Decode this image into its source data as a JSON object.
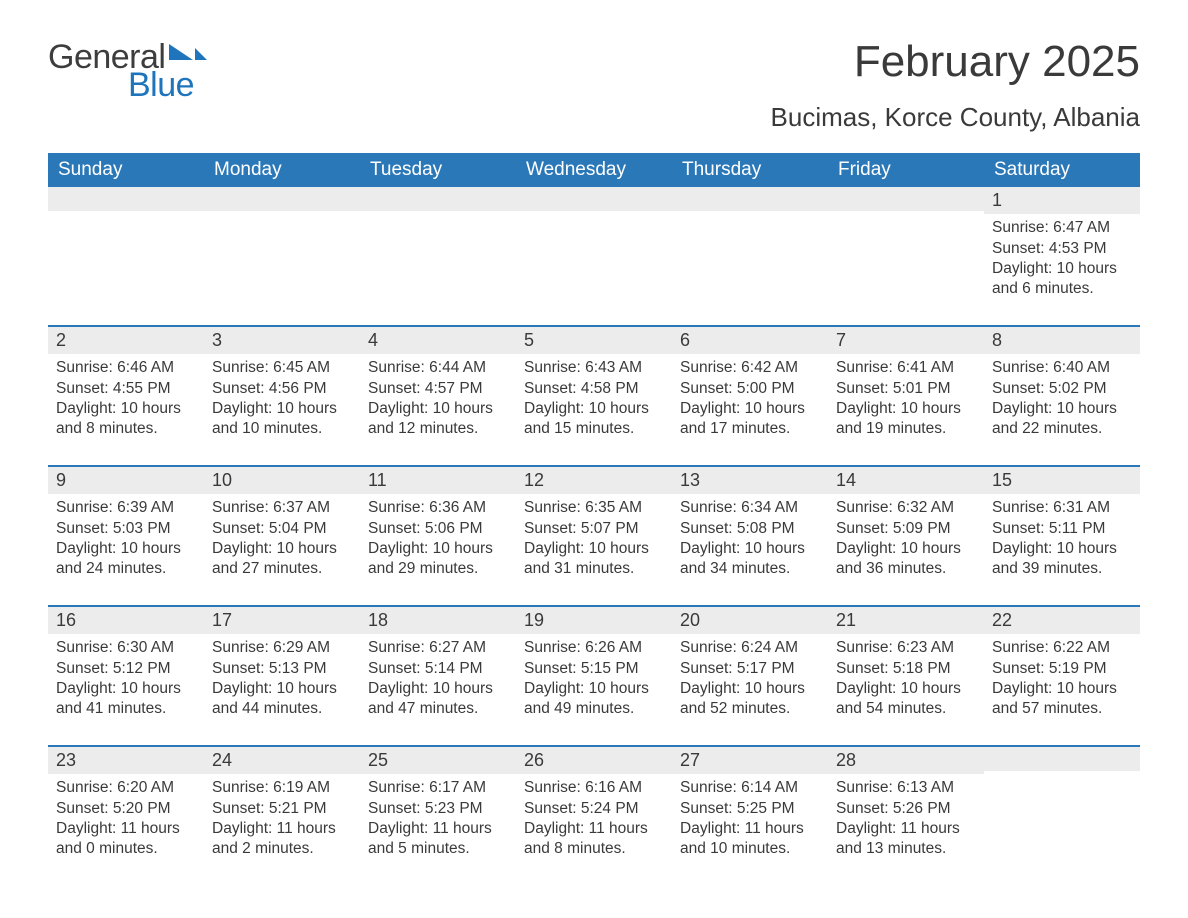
{
  "logo": {
    "text1": "General",
    "text2": "Blue",
    "flag_color": "#1f75bb"
  },
  "title": "February 2025",
  "location": "Bucimas, Korce County, Albania",
  "colors": {
    "header_bg": "#2b78b8",
    "header_text": "#ffffff",
    "daynum_bg": "#ececec",
    "row_divider": "#2b78b8",
    "body_text": "#3a3a3a"
  },
  "days_of_week": [
    "Sunday",
    "Monday",
    "Tuesday",
    "Wednesday",
    "Thursday",
    "Friday",
    "Saturday"
  ],
  "weeks": [
    [
      null,
      null,
      null,
      null,
      null,
      null,
      {
        "n": "1",
        "sunrise": "6:47 AM",
        "sunset": "4:53 PM",
        "daylight": "10 hours and 6 minutes."
      }
    ],
    [
      {
        "n": "2",
        "sunrise": "6:46 AM",
        "sunset": "4:55 PM",
        "daylight": "10 hours and 8 minutes."
      },
      {
        "n": "3",
        "sunrise": "6:45 AM",
        "sunset": "4:56 PM",
        "daylight": "10 hours and 10 minutes."
      },
      {
        "n": "4",
        "sunrise": "6:44 AM",
        "sunset": "4:57 PM",
        "daylight": "10 hours and 12 minutes."
      },
      {
        "n": "5",
        "sunrise": "6:43 AM",
        "sunset": "4:58 PM",
        "daylight": "10 hours and 15 minutes."
      },
      {
        "n": "6",
        "sunrise": "6:42 AM",
        "sunset": "5:00 PM",
        "daylight": "10 hours and 17 minutes."
      },
      {
        "n": "7",
        "sunrise": "6:41 AM",
        "sunset": "5:01 PM",
        "daylight": "10 hours and 19 minutes."
      },
      {
        "n": "8",
        "sunrise": "6:40 AM",
        "sunset": "5:02 PM",
        "daylight": "10 hours and 22 minutes."
      }
    ],
    [
      {
        "n": "9",
        "sunrise": "6:39 AM",
        "sunset": "5:03 PM",
        "daylight": "10 hours and 24 minutes."
      },
      {
        "n": "10",
        "sunrise": "6:37 AM",
        "sunset": "5:04 PM",
        "daylight": "10 hours and 27 minutes."
      },
      {
        "n": "11",
        "sunrise": "6:36 AM",
        "sunset": "5:06 PM",
        "daylight": "10 hours and 29 minutes."
      },
      {
        "n": "12",
        "sunrise": "6:35 AM",
        "sunset": "5:07 PM",
        "daylight": "10 hours and 31 minutes."
      },
      {
        "n": "13",
        "sunrise": "6:34 AM",
        "sunset": "5:08 PM",
        "daylight": "10 hours and 34 minutes."
      },
      {
        "n": "14",
        "sunrise": "6:32 AM",
        "sunset": "5:09 PM",
        "daylight": "10 hours and 36 minutes."
      },
      {
        "n": "15",
        "sunrise": "6:31 AM",
        "sunset": "5:11 PM",
        "daylight": "10 hours and 39 minutes."
      }
    ],
    [
      {
        "n": "16",
        "sunrise": "6:30 AM",
        "sunset": "5:12 PM",
        "daylight": "10 hours and 41 minutes."
      },
      {
        "n": "17",
        "sunrise": "6:29 AM",
        "sunset": "5:13 PM",
        "daylight": "10 hours and 44 minutes."
      },
      {
        "n": "18",
        "sunrise": "6:27 AM",
        "sunset": "5:14 PM",
        "daylight": "10 hours and 47 minutes."
      },
      {
        "n": "19",
        "sunrise": "6:26 AM",
        "sunset": "5:15 PM",
        "daylight": "10 hours and 49 minutes."
      },
      {
        "n": "20",
        "sunrise": "6:24 AM",
        "sunset": "5:17 PM",
        "daylight": "10 hours and 52 minutes."
      },
      {
        "n": "21",
        "sunrise": "6:23 AM",
        "sunset": "5:18 PM",
        "daylight": "10 hours and 54 minutes."
      },
      {
        "n": "22",
        "sunrise": "6:22 AM",
        "sunset": "5:19 PM",
        "daylight": "10 hours and 57 minutes."
      }
    ],
    [
      {
        "n": "23",
        "sunrise": "6:20 AM",
        "sunset": "5:20 PM",
        "daylight": "11 hours and 0 minutes."
      },
      {
        "n": "24",
        "sunrise": "6:19 AM",
        "sunset": "5:21 PM",
        "daylight": "11 hours and 2 minutes."
      },
      {
        "n": "25",
        "sunrise": "6:17 AM",
        "sunset": "5:23 PM",
        "daylight": "11 hours and 5 minutes."
      },
      {
        "n": "26",
        "sunrise": "6:16 AM",
        "sunset": "5:24 PM",
        "daylight": "11 hours and 8 minutes."
      },
      {
        "n": "27",
        "sunrise": "6:14 AM",
        "sunset": "5:25 PM",
        "daylight": "11 hours and 10 minutes."
      },
      {
        "n": "28",
        "sunrise": "6:13 AM",
        "sunset": "5:26 PM",
        "daylight": "11 hours and 13 minutes."
      },
      null
    ]
  ],
  "labels": {
    "sunrise": "Sunrise: ",
    "sunset": "Sunset: ",
    "daylight": "Daylight: "
  }
}
